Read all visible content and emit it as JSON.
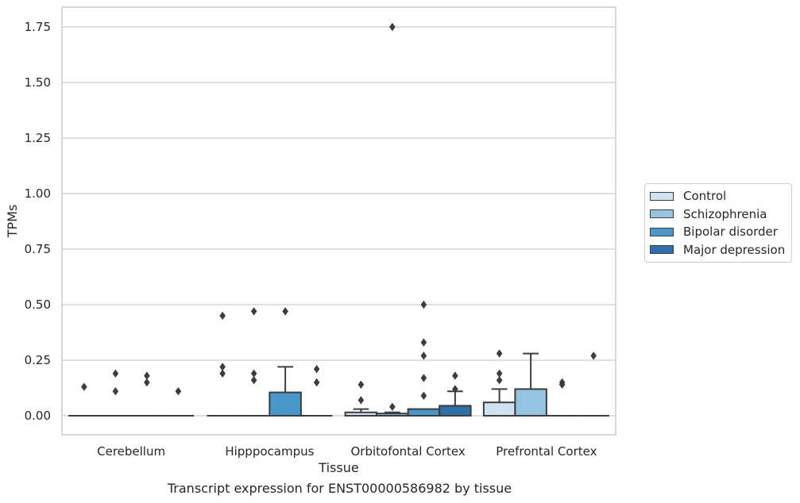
{
  "chart_data": {
    "type": "box",
    "title": "",
    "caption": "Transcript expression for ENST00000586982 by tissue",
    "xlabel": "Tissue",
    "ylabel": "TPMs",
    "ylim": [
      -0.085,
      1.84
    ],
    "yticks": [
      "0.00",
      "0.25",
      "0.50",
      "0.75",
      "1.00",
      "1.25",
      "1.50",
      "1.75"
    ],
    "ytick_values": [
      0,
      0.25,
      0.5,
      0.75,
      1.0,
      1.25,
      1.5,
      1.75
    ],
    "grid": "horizontal",
    "legend_position": "right",
    "categories": [
      "Cerebellum",
      "Hipppocampus",
      "Orbitofontal Cortex",
      "Prefrontal Cortex"
    ],
    "series": [
      {
        "name": "Control",
        "color": "#d0e1f2",
        "boxes": [
          {
            "q1": 0,
            "median": 0,
            "q3": 0,
            "whislo": 0,
            "whishi": 0,
            "fliers": [
              0.13
            ]
          },
          {
            "q1": 0,
            "median": 0,
            "q3": 0,
            "whislo": 0,
            "whishi": 0,
            "fliers": [
              0.45,
              0.22,
              0.19
            ]
          },
          {
            "q1": 0,
            "median": 0,
            "q3": 0.015,
            "whislo": 0,
            "whishi": 0.03,
            "fliers": [
              0.14,
              0.07
            ]
          },
          {
            "q1": 0,
            "median": 0,
            "q3": 0.06,
            "whislo": 0,
            "whishi": 0.12,
            "fliers": [
              0.28,
              0.19,
              0.16
            ]
          }
        ]
      },
      {
        "name": "Schizophrenia",
        "color": "#94c4df",
        "boxes": [
          {
            "q1": 0,
            "median": 0,
            "q3": 0,
            "whislo": 0,
            "whishi": 0,
            "fliers": [
              0.19,
              0.11
            ]
          },
          {
            "q1": 0,
            "median": 0,
            "q3": 0,
            "whislo": 0,
            "whishi": 0,
            "fliers": [
              0.47,
              0.19,
              0.16
            ]
          },
          {
            "q1": 0,
            "median": 0,
            "q3": 0.01,
            "whislo": 0,
            "whishi": 0.015,
            "fliers": [
              1.75,
              0.04
            ]
          },
          {
            "q1": 0,
            "median": 0,
            "q3": 0.12,
            "whislo": 0,
            "whishi": 0.28,
            "fliers": []
          }
        ]
      },
      {
        "name": "Bipolar disorder",
        "color": "#4a98c9",
        "boxes": [
          {
            "q1": 0,
            "median": 0,
            "q3": 0,
            "whislo": 0,
            "whishi": 0,
            "fliers": [
              0.18,
              0.15
            ]
          },
          {
            "q1": 0,
            "median": 0,
            "q3": 0.105,
            "whislo": 0,
            "whishi": 0.22,
            "fliers": [
              0.47
            ]
          },
          {
            "q1": 0,
            "median": 0,
            "q3": 0.03,
            "whislo": 0,
            "whishi": 0.03,
            "fliers": [
              0.5,
              0.33,
              0.27,
              0.17,
              0.09
            ]
          },
          {
            "q1": 0,
            "median": 0,
            "q3": 0,
            "whislo": 0,
            "whishi": 0,
            "fliers": [
              0.15,
              0.14
            ]
          }
        ]
      },
      {
        "name": "Major depression",
        "color": "#2e6fac",
        "boxes": [
          {
            "q1": 0,
            "median": 0,
            "q3": 0,
            "whislo": 0,
            "whishi": 0,
            "fliers": [
              0.11
            ]
          },
          {
            "q1": 0,
            "median": 0,
            "q3": 0,
            "whislo": 0,
            "whishi": 0,
            "fliers": [
              0.21,
              0.15
            ]
          },
          {
            "q1": 0,
            "median": 0,
            "q3": 0.045,
            "whislo": 0,
            "whishi": 0.11,
            "fliers": [
              0.18,
              0.12
            ]
          },
          {
            "q1": 0,
            "median": 0,
            "q3": 0,
            "whislo": 0,
            "whishi": 0,
            "fliers": [
              0.27
            ]
          }
        ]
      }
    ]
  },
  "legend": {
    "items": [
      {
        "label": "Control",
        "color": "#d0e1f2"
      },
      {
        "label": "Schizophrenia",
        "color": "#94c4df"
      },
      {
        "label": "Bipolar disorder",
        "color": "#4a98c9"
      },
      {
        "label": "Major depression",
        "color": "#2e6fac"
      }
    ]
  }
}
